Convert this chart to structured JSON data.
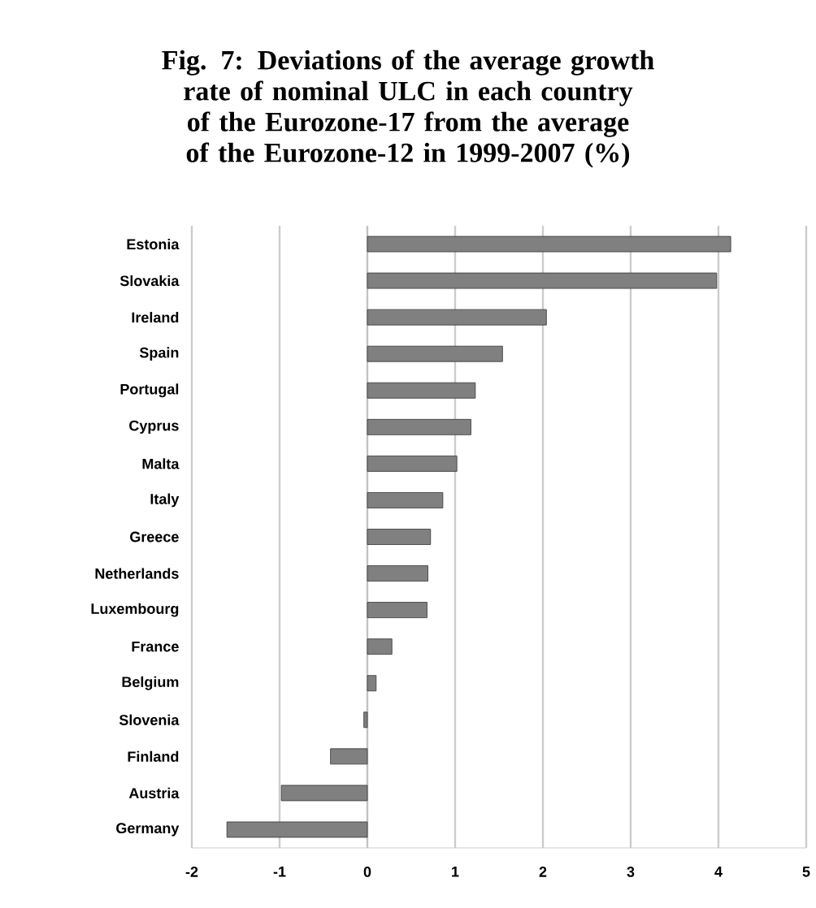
{
  "chart_data": {
    "type": "bar",
    "orientation": "horizontal",
    "title": "Fig. 7: Deviations of the average growth rate of nominal ULC in each country of the Eurozone-17 from the average of the Eurozone-12 in 1999-2007 (%)",
    "categories": [
      "Estonia",
      "Slovakia",
      "Ireland",
      "Spain",
      "Portugal",
      "Cyprus",
      "Malta",
      "Italy",
      "Greece",
      "Netherlands",
      "Luxembourg",
      "France",
      "Belgium",
      "Slovenia",
      "Finland",
      "Austria",
      "Germany"
    ],
    "values": [
      4.14,
      3.98,
      2.04,
      1.54,
      1.23,
      1.18,
      1.02,
      0.86,
      0.72,
      0.69,
      0.68,
      0.28,
      0.1,
      -0.04,
      -0.42,
      -0.98,
      -1.6
    ],
    "color": "#808080",
    "xlim": [
      -2,
      5
    ],
    "xticks": [
      -2,
      -1,
      0,
      1,
      2,
      3,
      4,
      5
    ],
    "grid": "x"
  }
}
